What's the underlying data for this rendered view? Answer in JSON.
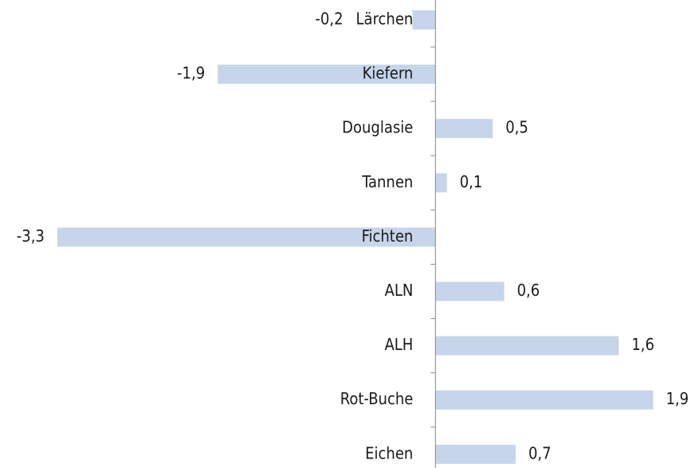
{
  "chart_data": {
    "type": "hbar",
    "categories": [
      "Lärchen",
      "Kiefern",
      "Douglasie",
      "Tannen",
      "Fichten",
      "ALN",
      "ALH",
      "Rot-Buche",
      "Eichen"
    ],
    "values": [
      -0.2,
      -1.9,
      0.5,
      0.1,
      -3.3,
      0.6,
      1.6,
      1.9,
      0.7
    ],
    "value_labels": [
      "-0,2",
      "-1,9",
      "0,5",
      "0,1",
      "-3,3",
      "0,6",
      "1,6",
      "1,9",
      "0,7"
    ],
    "color": "#c6d5ea",
    "xlim": [
      -3.8,
      2.3
    ]
  }
}
